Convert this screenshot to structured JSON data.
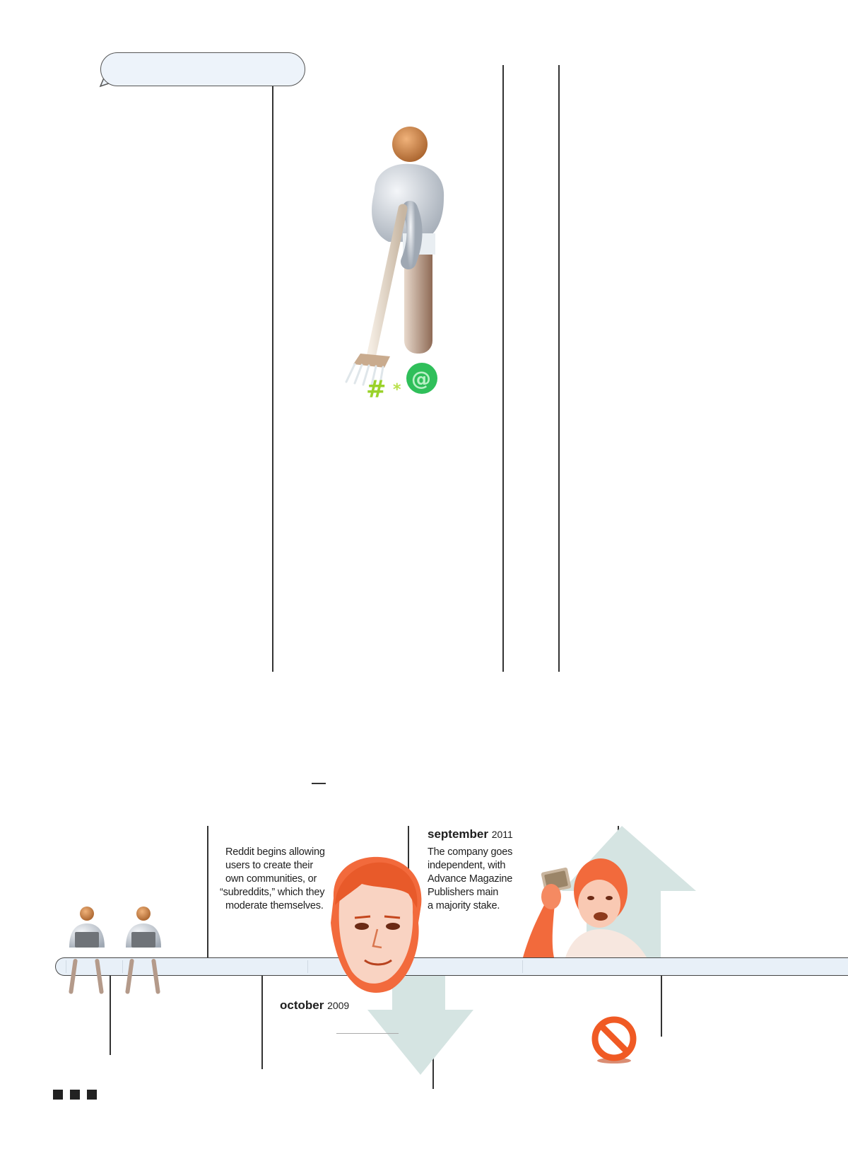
{
  "timeline": {
    "event_2009": {
      "month": "october",
      "year": "2009",
      "text": [
        "Reddit begins allowing",
        "users to create their",
        "own communities, or",
        "“subreddits,” which they",
        "moderate themselves."
      ]
    },
    "event_2011": {
      "month": "september",
      "year": "2011",
      "text": [
        "The company goes",
        "independent, with",
        "Advance Magazine",
        "Publishers main",
        "a majority stake."
      ]
    }
  },
  "colors": {
    "accent_orange": "#f26a3c",
    "arrow_fill": "#d5e4e2",
    "bubble_fill": "#edf3fa",
    "bar_fill": "#e8f0f8",
    "hashtag_green": "#9ad22a",
    "at_green": "#2fbf5a"
  },
  "icons": [
    "sweeper-figure-illustration",
    "person-with-laptop-icon",
    "up-arrow-icon",
    "down-arrow-icon",
    "ban-icon",
    "face-portrait",
    "money-portrait"
  ]
}
